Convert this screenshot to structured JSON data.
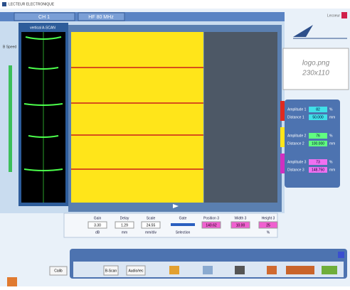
{
  "header": {
    "title": "LECTEUR ELECTRONIQUE",
    "channel": "CH 1",
    "frequency": "HF 80 MHz",
    "company": "Lecoeur"
  },
  "ascan": {
    "label": "vertical A-SCAN",
    "speed": "B Speed"
  },
  "logo": {
    "name": "logo.png",
    "size": "230x110"
  },
  "measures": [
    {
      "amp_label": "Amplitude 1",
      "amp": "82",
      "amp_unit": "%",
      "dist_label": "Distance 1",
      "dist": "50.000",
      "dist_unit": "mm"
    },
    {
      "amp_label": "Amplitude 2",
      "amp": "76",
      "amp_unit": "%",
      "dist_label": "Distance 2",
      "dist": "100.000",
      "dist_unit": "mm"
    },
    {
      "amp_label": "Amplitude 3",
      "amp": "73",
      "amp_unit": "%",
      "dist_label": "Distance 3",
      "dist": "148.750",
      "dist_unit": "mm"
    }
  ],
  "controls": [
    {
      "label": "Gain",
      "value": "3.30",
      "unit": "dB"
    },
    {
      "label": "Delay",
      "value": "1.29",
      "unit": "mm"
    },
    {
      "label": "Scale",
      "value": "24.55",
      "unit": "mm/div"
    },
    {
      "label": "Gate",
      "value": "",
      "unit": "Selection"
    },
    {
      "label": "Position 3",
      "value": "140.62",
      "unit": ""
    },
    {
      "label": "Width 3",
      "value": "10.00",
      "unit": ""
    },
    {
      "label": "Height 3",
      "value": "25",
      "unit": "%"
    }
  ],
  "toolbar": {
    "calib": "Calib",
    "bscan": "B-Scan",
    "audio": "Audio/rec"
  }
}
